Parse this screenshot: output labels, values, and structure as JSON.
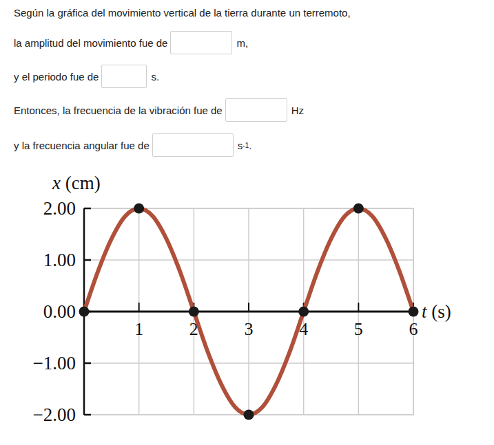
{
  "form": {
    "intro": "Según la gráfica del movimiento vertical de la tierra durante un terremoto,",
    "questions": [
      {
        "prefix": "la amplitud del movimiento fue de",
        "unit": "m,"
      },
      {
        "prefix": "y el periodo fue de",
        "unit": "s."
      },
      {
        "prefix": "Entonces, la frecuencia de la vibración fue de",
        "unit": "Hz"
      },
      {
        "prefix": "y la frecuencia angular fue de",
        "unit": "s",
        "unit_sup": "-1",
        "unit_after": "."
      }
    ]
  },
  "chart_data": {
    "type": "line",
    "x_label": "t (s)",
    "y_label": "x (cm)",
    "xlim": [
      0,
      6
    ],
    "ylim": [
      -2,
      2
    ],
    "xticks": [
      1,
      2,
      3,
      4,
      5,
      6
    ],
    "yticks": [
      {
        "value": 2,
        "label": "2.00"
      },
      {
        "value": 1,
        "label": "1.00"
      },
      {
        "value": 0,
        "label": "0.00"
      },
      {
        "value": -1,
        "label": "−1.00"
      },
      {
        "value": -2,
        "label": "−2.00"
      }
    ],
    "grid": true,
    "series": [
      {
        "type": "line",
        "color": "#b0503a",
        "x": [
          0,
          0.25,
          0.5,
          0.75,
          1,
          1.25,
          1.5,
          1.75,
          2,
          2.25,
          2.5,
          2.75,
          3,
          3.25,
          3.5,
          3.75,
          4,
          4.25,
          4.5,
          4.75,
          5,
          5.25,
          5.5,
          5.75,
          6
        ],
        "values": [
          0,
          0.77,
          1.41,
          1.85,
          2.0,
          1.85,
          1.41,
          0.77,
          0,
          -0.77,
          -1.41,
          -1.85,
          -2.0,
          -1.85,
          -1.41,
          -0.77,
          0,
          0.77,
          1.41,
          1.85,
          2.0,
          1.85,
          1.41,
          0.77,
          0
        ]
      },
      {
        "type": "scatter",
        "color": "#1a1a1a",
        "marker": "circle",
        "x": [
          0,
          1,
          2,
          3,
          4,
          5,
          6
        ],
        "values": [
          0,
          2,
          0,
          -2,
          0,
          2,
          0
        ]
      }
    ]
  }
}
